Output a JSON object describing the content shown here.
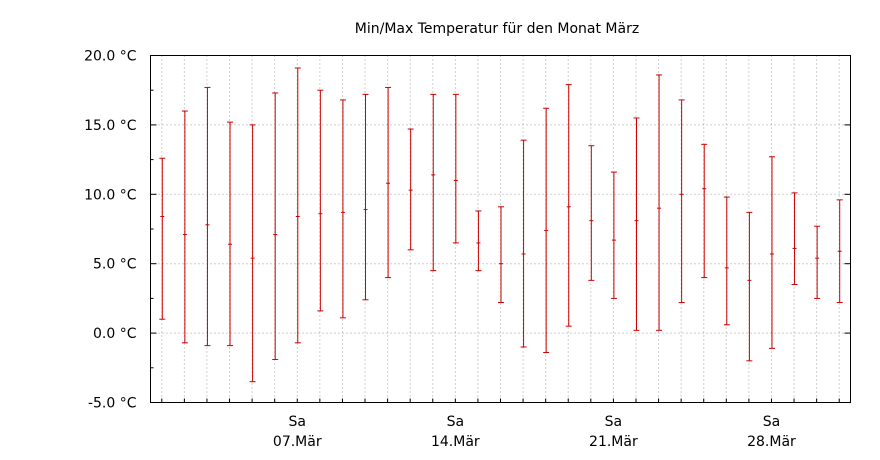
{
  "chart_data": {
    "type": "errorbar",
    "title": "Min/Max Temperatur für den Monat März",
    "xlabel": "",
    "ylabel": "",
    "ylim": [
      -5,
      20
    ],
    "xlim": [
      0.5,
      31.5
    ],
    "y_ticks": [
      -5,
      0,
      5,
      10,
      15,
      20
    ],
    "y_tick_labels": [
      "-5.0 °C",
      "0.0 °C",
      "5.0 °C",
      "10.0 °C",
      "15.0 °C",
      "20.0 °C"
    ],
    "x_ticks": [
      7,
      14,
      21,
      28
    ],
    "x_tick_labels": [
      {
        "day": "Sa",
        "date": "07.Mär"
      },
      {
        "day": "Sa",
        "date": "14.Mär"
      },
      {
        "day": "Sa",
        "date": "21.Mär"
      },
      {
        "day": "Sa",
        "date": "28.Mär"
      }
    ],
    "grid": true,
    "bar_color": "#cc0000",
    "days": [
      1,
      2,
      3,
      4,
      5,
      6,
      7,
      8,
      9,
      10,
      11,
      12,
      13,
      14,
      15,
      16,
      17,
      18,
      19,
      20,
      21,
      22,
      23,
      24,
      25,
      26,
      27,
      28,
      29,
      30,
      31
    ],
    "min": [
      1.0,
      -0.7,
      -0.9,
      -0.9,
      -3.5,
      -1.9,
      -0.7,
      1.6,
      1.1,
      2.4,
      4.0,
      6.0,
      4.5,
      6.5,
      4.5,
      2.2,
      -1.0,
      -1.4,
      0.5,
      3.8,
      2.5,
      0.2,
      0.2,
      2.2,
      4.0,
      0.6,
      -2.0,
      -1.1,
      3.5,
      2.5,
      2.2
    ],
    "mid": [
      8.4,
      7.1,
      7.8,
      6.4,
      5.4,
      7.1,
      8.4,
      8.6,
      8.7,
      8.9,
      10.8,
      10.3,
      11.4,
      11.0,
      6.5,
      5.0,
      5.7,
      7.4,
      9.1,
      8.1,
      6.7,
      8.1,
      9.0,
      10.0,
      10.4,
      4.7,
      3.8,
      5.7,
      6.1,
      5.4,
      5.9
    ],
    "max": [
      12.6,
      16.0,
      17.7,
      15.2,
      15.0,
      17.3,
      19.1,
      17.5,
      16.8,
      17.2,
      17.7,
      14.7,
      17.2,
      17.2,
      8.8,
      9.1,
      13.9,
      16.2,
      17.9,
      13.5,
      11.6,
      15.5,
      18.6,
      16.8,
      13.6,
      9.8,
      8.7,
      12.7,
      10.1,
      7.7,
      9.6
    ]
  }
}
